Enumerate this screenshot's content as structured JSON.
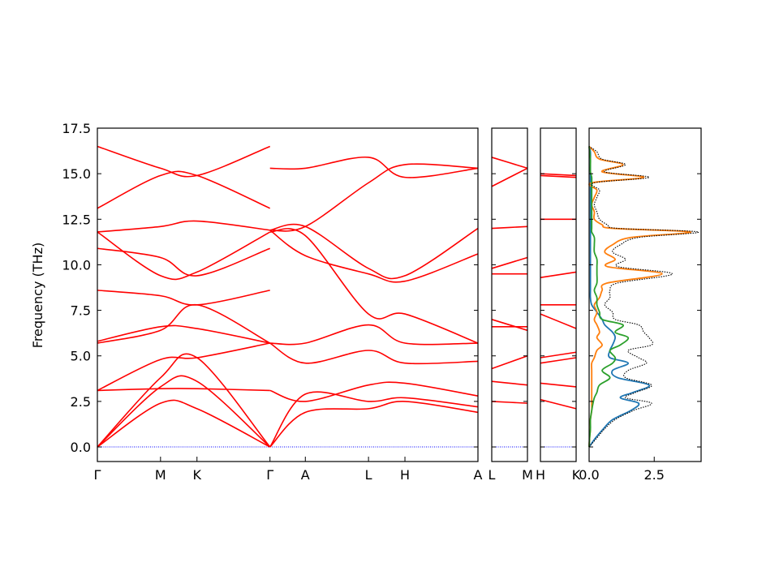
{
  "chart_data": {
    "type": "line",
    "ylabel": "Frequency (THz)",
    "ylim": [
      -0.8,
      17.5
    ],
    "yticks": [
      "0.0",
      "2.5",
      "5.0",
      "7.5",
      "10.0",
      "12.5",
      "15.0",
      "17.5"
    ],
    "ytick_values": [
      0,
      2.5,
      5,
      7.5,
      10,
      12.5,
      15,
      17.5
    ],
    "colors": {
      "band": "#ff0000",
      "zero_line": "#0000ff",
      "dos_1": "#1f77b4",
      "dos_2": "#ff7f0e",
      "dos_3": "#2ca02c",
      "dos_total": "#000000"
    },
    "panels": [
      {
        "id": "path-1",
        "xticks": [
          "Γ",
          "M",
          "K",
          "Γ",
          "A",
          "L",
          "H",
          "A"
        ],
        "xtick_positions": [
          0,
          0.577,
          0.91,
          1.577,
          1.9,
          2.477,
          2.81,
          3.477
        ],
        "segments": [
          {
            "x": [
              0,
              0.577,
              0.91,
              1.577
            ],
            "bands": [
              [
                0,
                2.4,
                2.1,
                0
              ],
              [
                0,
                3.3,
                3.6,
                0
              ],
              [
                0,
                3.8,
                4.9,
                0
              ],
              [
                3.1,
                3.2,
                3.2,
                3.1
              ],
              [
                3.1,
                4.8,
                4.9,
                5.7
              ],
              [
                5.8,
                6.6,
                6.5,
                5.7
              ],
              [
                5.7,
                6.4,
                7.8,
                5.7
              ],
              [
                8.6,
                8.3,
                7.8,
                8.6
              ],
              [
                10.9,
                10.4,
                9.4,
                10.9
              ],
              [
                11.8,
                9.4,
                9.6,
                11.8
              ],
              [
                11.8,
                12.1,
                12.4,
                11.9
              ],
              [
                13.1,
                14.9,
                14.9,
                13.1
              ],
              [
                16.5,
                15.3,
                14.9,
                16.5
              ]
            ]
          },
          {
            "x": [
              1.577,
              1.9,
              2.477,
              2.81,
              3.477
            ],
            "bands": [
              [
                0,
                1.9,
                2.1,
                2.5,
                1.9
              ],
              [
                0,
                2.9,
                2.5,
                2.7,
                2.2
              ],
              [
                3.1,
                2.5,
                3.4,
                3.5,
                2.8
              ],
              [
                5.7,
                4.6,
                5.3,
                4.6,
                4.7
              ],
              [
                5.7,
                5.7,
                6.7,
                5.7,
                5.7
              ],
              [
                11.8,
                11.6,
                7.3,
                7.3,
                5.7
              ],
              [
                11.9,
                10.5,
                9.5,
                9.1,
                10.6
              ],
              [
                11.9,
                12.1,
                9.8,
                9.4,
                12.0
              ],
              [
                15.3,
                15.3,
                15.9,
                14.8,
                15.3
              ],
              [
                11.9,
                12.1,
                14.5,
                15.5,
                15.3
              ]
            ]
          }
        ]
      },
      {
        "id": "path-2",
        "xticks": [
          "L",
          "M"
        ],
        "xtick_positions": [
          0,
          0.5
        ],
        "segments": [
          {
            "x": [
              0,
              0.5
            ],
            "bands": [
              [
                2.5,
                2.4
              ],
              [
                3.6,
                3.4
              ],
              [
                4.3,
                5.0
              ],
              [
                6.6,
                6.6
              ],
              [
                7.0,
                6.4
              ],
              [
                9.5,
                9.5
              ],
              [
                9.8,
                10.4
              ],
              [
                12.0,
                12.1
              ],
              [
                14.3,
                15.3
              ],
              [
                15.9,
                15.3
              ]
            ]
          }
        ]
      },
      {
        "id": "path-3",
        "xticks": [
          "H",
          "K"
        ],
        "xtick_positions": [
          0,
          0.5
        ],
        "segments": [
          {
            "x": [
              0,
              0.5
            ],
            "bands": [
              [
                2.6,
                2.1
              ],
              [
                3.5,
                3.3
              ],
              [
                4.6,
                4.9
              ],
              [
                4.9,
                5.2
              ],
              [
                7.3,
                6.5
              ],
              [
                7.8,
                7.8
              ],
              [
                9.3,
                9.6
              ],
              [
                12.5,
                12.5
              ],
              [
                15.0,
                14.9
              ],
              [
                14.9,
                14.8
              ]
            ]
          }
        ]
      }
    ],
    "dos": {
      "xticks": [
        "0.0",
        "2.5"
      ],
      "xtick_values": [
        0,
        2.5
      ],
      "xlim": [
        0,
        4.3
      ],
      "freq": [
        0,
        0.5,
        1.0,
        1.5,
        2.0,
        2.4,
        2.7,
        3.0,
        3.4,
        3.8,
        4.2,
        4.6,
        4.9,
        5.3,
        5.6,
        6.0,
        6.3,
        6.7,
        7.0,
        7.4,
        7.8,
        8.2,
        8.6,
        9.0,
        9.5,
        9.9,
        10.3,
        10.7,
        11.1,
        11.5,
        11.8,
        12.0,
        12.2,
        12.5,
        12.9,
        13.3,
        13.7,
        14.1,
        14.5,
        14.8,
        15.1,
        15.5,
        15.8,
        16.2,
        16.5
      ],
      "series": [
        {
          "values": [
            0,
            0.25,
            0.55,
            0.9,
            1.6,
            1.9,
            1.2,
            1.7,
            2.3,
            1.1,
            0.9,
            1.5,
            0.8,
            0.8,
            0.9,
            1.0,
            0.9,
            0.6,
            0.5,
            0.3,
            0.1,
            0.05,
            0.05,
            0.05,
            0.05,
            0.05,
            0.05,
            0.05,
            0.05,
            0.05,
            0.05,
            0.05,
            0.05,
            0.05,
            0.05,
            0.05,
            0.05,
            0.05,
            0.05,
            0.05,
            0.05,
            0.05,
            0.05,
            0.05,
            0
          ]
        },
        {
          "values": [
            0,
            0.02,
            0.05,
            0.05,
            0.1,
            0.1,
            0.1,
            0.1,
            0.1,
            0.1,
            0.1,
            0.1,
            0.2,
            0.3,
            0.5,
            0.3,
            0.4,
            0.3,
            0.2,
            0.3,
            0.2,
            0.4,
            0.5,
            0.7,
            2.8,
            0.7,
            1.0,
            0.6,
            0.9,
            1.6,
            3.9,
            0.9,
            0.5,
            0.2,
            0.2,
            0.1,
            0.2,
            0.3,
            0.1,
            2.1,
            0.5,
            1.3,
            0.4,
            0.2,
            0
          ]
        },
        {
          "values": [
            0,
            0.02,
            0.05,
            0.05,
            0.1,
            0.15,
            0.2,
            0.3,
            0.4,
            0.8,
            0.5,
            0.9,
            1.0,
            0.8,
            1.2,
            1.5,
            1.0,
            1.3,
            0.5,
            0.4,
            0.3,
            0.3,
            0.2,
            0.3,
            0.3,
            0.3,
            0.3,
            0.2,
            0.2,
            0.2,
            0.1,
            0.1,
            0.1,
            0.1,
            0.1,
            0.1,
            0.1,
            0.1,
            0.1,
            0.1,
            0.05,
            0.05,
            0.05,
            0.02,
            0
          ]
        },
        {
          "values": [
            0,
            0.3,
            0.6,
            1.0,
            1.7,
            2.4,
            1.4,
            1.8,
            2.4,
            1.4,
            1.5,
            2.2,
            1.9,
            1.5,
            2.4,
            2.3,
            2.1,
            1.9,
            1.0,
            0.9,
            0.6,
            0.8,
            0.8,
            1.1,
            3.2,
            1.1,
            1.4,
            0.9,
            1.2,
            1.9,
            4.2,
            1.1,
            0.7,
            0.4,
            0.3,
            0.2,
            0.3,
            0.4,
            0.2,
            2.3,
            0.6,
            1.4,
            0.5,
            0.3,
            0
          ]
        }
      ]
    }
  }
}
